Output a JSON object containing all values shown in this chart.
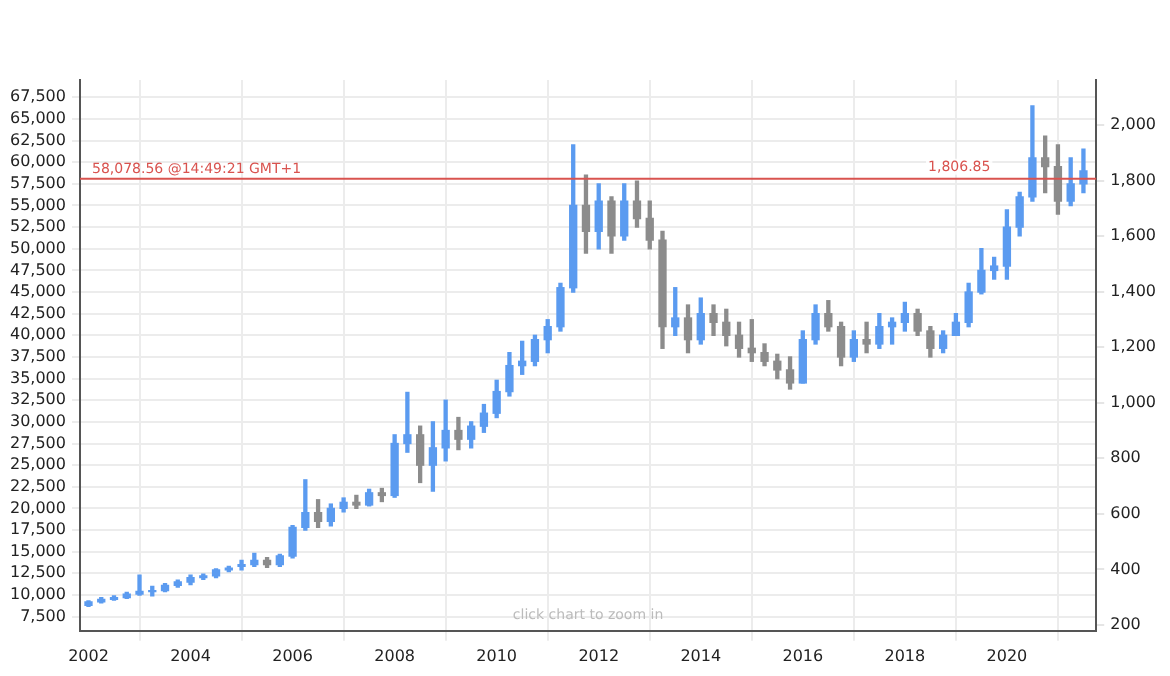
{
  "chart_data": {
    "type": "candlestick",
    "colors": [
      "#5b9bf0",
      "#5b9bf0",
      "#5b9bf0",
      "#5b9bf0",
      "#5b9bf0",
      "#5b9bf0",
      "#5b9bf0",
      "#5b9bf0",
      "#5b9bf0",
      "#5b9bf0",
      "#5b9bf0",
      "#5b9bf0",
      "#5b9bf0",
      "#5b9bf0",
      "#8c8c8c",
      "#5b9bf0",
      "#5b9bf0",
      "#5b9bf0",
      "#8c8c8c",
      "#5b9bf0",
      "#5b9bf0",
      "#8c8c8c",
      "#5b9bf0",
      "#8c8c8c",
      "#5b9bf0",
      "#5b9bf0",
      "#8c8c8c",
      "#5b9bf0",
      "#5b9bf0",
      "#8c8c8c",
      "#5b9bf0",
      "#5b9bf0",
      "#5b9bf0",
      "#5b9bf0",
      "#5b9bf0",
      "#5b9bf0",
      "#5b9bf0",
      "#5b9bf0",
      "#5b9bf0",
      "#8c8c8c",
      "#5b9bf0",
      "#8c8c8c",
      "#5b9bf0",
      "#8c8c8c",
      "#8c8c8c",
      "#8c8c8c",
      "#5b9bf0",
      "#8c8c8c",
      "#5b9bf0",
      "#8c8c8c",
      "#8c8c8c",
      "#8c8c8c",
      "#8c8c8c",
      "#8c8c8c",
      "#8c8c8c",
      "#8c8c8c",
      "#5b9bf0",
      "#5b9bf0",
      "#8c8c8c",
      "#8c8c8c",
      "#5b9bf0",
      "#8c8c8c",
      "#5b9bf0",
      "#5b9bf0",
      "#5b9bf0",
      "#8c8c8c",
      "#8c8c8c",
      "#5b9bf0",
      "#5b9bf0",
      "#5b9bf0",
      "#5b9bf0",
      "#5b9bf0",
      "#5b9bf0",
      "#5b9bf0",
      "#5b9bf0",
      "#8c8c8c",
      "#8c8c8c",
      "#5b9bf0",
      "#5b9bf0"
    ],
    "x": [
      "2002-01",
      "2002-04",
      "2002-07",
      "2002-10",
      "2003-01",
      "2003-04",
      "2003-07",
      "2003-10",
      "2004-01",
      "2004-04",
      "2004-07",
      "2004-10",
      "2005-01",
      "2005-04",
      "2005-07",
      "2005-10",
      "2006-01",
      "2006-04",
      "2006-07",
      "2006-10",
      "2007-01",
      "2007-04",
      "2007-07",
      "2007-10",
      "2008-01",
      "2008-04",
      "2008-07",
      "2008-10",
      "2009-01",
      "2009-04",
      "2009-07",
      "2009-10",
      "2010-01",
      "2010-04",
      "2010-07",
      "2010-10",
      "2011-01",
      "2011-04",
      "2011-07",
      "2011-10",
      "2012-01",
      "2012-04",
      "2012-07",
      "2012-10",
      "2013-01",
      "2013-04",
      "2013-07",
      "2013-10",
      "2014-01",
      "2014-04",
      "2014-07",
      "2014-10",
      "2015-01",
      "2015-04",
      "2015-07",
      "2015-10",
      "2016-01",
      "2016-04",
      "2016-07",
      "2016-10",
      "2017-01",
      "2017-04",
      "2017-07",
      "2017-10",
      "2018-01",
      "2018-04",
      "2018-07",
      "2018-10",
      "2019-01",
      "2019-04",
      "2019-07",
      "2019-10",
      "2020-01",
      "2020-04",
      "2020-07",
      "2020-10",
      "2021-01",
      "2021-04",
      "2021-07"
    ],
    "ohlc": [
      [
        8800,
        9300,
        8700,
        9200
      ],
      [
        9200,
        9700,
        9100,
        9500
      ],
      [
        9500,
        9900,
        9400,
        9700
      ],
      [
        9700,
        10300,
        9600,
        10100
      ],
      [
        10100,
        12300,
        10000,
        10400
      ],
      [
        10400,
        11000,
        9900,
        10500
      ],
      [
        10500,
        11300,
        10400,
        11100
      ],
      [
        11100,
        11700,
        10900,
        11500
      ],
      [
        11500,
        12300,
        11200,
        12000
      ],
      [
        12000,
        12400,
        11800,
        12200
      ],
      [
        12200,
        13000,
        12000,
        12900
      ],
      [
        12900,
        13300,
        12700,
        13100
      ],
      [
        13300,
        14000,
        12900,
        13500
      ],
      [
        13500,
        14800,
        13300,
        14000
      ],
      [
        14000,
        14300,
        13200,
        13500
      ],
      [
        13500,
        14700,
        13300,
        14500
      ],
      [
        14500,
        18000,
        14300,
        17800
      ],
      [
        17800,
        23300,
        17500,
        19500
      ],
      [
        19500,
        21000,
        17800,
        18500
      ],
      [
        18500,
        20500,
        18000,
        20000
      ],
      [
        20000,
        21200,
        19600,
        20700
      ],
      [
        20700,
        21500,
        20000,
        20400
      ],
      [
        20400,
        22200,
        20300,
        21800
      ],
      [
        21800,
        22300,
        20800,
        21500
      ],
      [
        21500,
        28500,
        21300,
        27500
      ],
      [
        27500,
        33400,
        26500,
        28500
      ],
      [
        28500,
        29500,
        23000,
        25000
      ],
      [
        25000,
        30000,
        22000,
        27000
      ],
      [
        27000,
        32500,
        25500,
        29000
      ],
      [
        29000,
        30500,
        26800,
        28000
      ],
      [
        28000,
        30000,
        27000,
        29500
      ],
      [
        29500,
        32000,
        28800,
        31000
      ],
      [
        31000,
        34800,
        30500,
        33500
      ],
      [
        33500,
        38000,
        33000,
        36500
      ],
      [
        36500,
        39300,
        35500,
        37000
      ],
      [
        37000,
        40000,
        36500,
        39500
      ],
      [
        39500,
        41800,
        38000,
        41000
      ],
      [
        41000,
        46000,
        40500,
        45500
      ],
      [
        45500,
        62000,
        45000,
        55000
      ],
      [
        55000,
        58500,
        49500,
        52000
      ],
      [
        52000,
        57500,
        50000,
        55500
      ],
      [
        55500,
        56000,
        49500,
        51500
      ],
      [
        51500,
        57500,
        51000,
        55500
      ],
      [
        55500,
        57800,
        52500,
        53500
      ],
      [
        53500,
        55500,
        50000,
        51000
      ],
      [
        51000,
        52000,
        38500,
        41000
      ],
      [
        41000,
        45500,
        40000,
        42000
      ],
      [
        42000,
        43500,
        38000,
        39500
      ],
      [
        39500,
        44300,
        39000,
        42500
      ],
      [
        42500,
        43500,
        40000,
        41500
      ],
      [
        41500,
        43000,
        38800,
        40000
      ],
      [
        40000,
        41500,
        37500,
        38500
      ],
      [
        38500,
        41800,
        37000,
        38000
      ],
      [
        38000,
        39000,
        36500,
        37000
      ],
      [
        37000,
        37800,
        35000,
        36000
      ],
      [
        36000,
        37500,
        33800,
        34500
      ],
      [
        34500,
        40500,
        34500,
        39500
      ],
      [
        39500,
        43500,
        39000,
        42500
      ],
      [
        42500,
        44000,
        40500,
        41000
      ],
      [
        41000,
        41500,
        36500,
        37500
      ],
      [
        37500,
        40500,
        37000,
        39500
      ],
      [
        39500,
        41500,
        38000,
        39000
      ],
      [
        39000,
        42500,
        38500,
        41000
      ],
      [
        41000,
        42000,
        39000,
        41500
      ],
      [
        41500,
        43800,
        40500,
        42500
      ],
      [
        42500,
        43000,
        40000,
        40500
      ],
      [
        40500,
        41000,
        37500,
        38500
      ],
      [
        38500,
        40500,
        38000,
        40000
      ],
      [
        40000,
        42500,
        40000,
        41500
      ],
      [
        41500,
        46000,
        41000,
        45000
      ],
      [
        45000,
        50000,
        44800,
        47500
      ],
      [
        47500,
        49000,
        46500,
        48000
      ],
      [
        48000,
        54500,
        46500,
        52500
      ],
      [
        52500,
        56500,
        51500,
        56000
      ],
      [
        56000,
        66500,
        55500,
        60500
      ],
      [
        60500,
        63000,
        56500,
        59500
      ],
      [
        59500,
        62000,
        54000,
        55500
      ],
      [
        55500,
        60500,
        55000,
        57500
      ],
      [
        57500,
        61500,
        56500,
        59000
      ]
    ],
    "xlim": [
      "2001-11",
      "2021-10"
    ],
    "xticks": [
      {
        "value": "2002",
        "label": "2002"
      },
      {
        "value": "2004",
        "label": "2004"
      },
      {
        "value": "2006",
        "label": "2006"
      },
      {
        "value": "2008",
        "label": "2008"
      },
      {
        "value": "2010",
        "label": "2010"
      },
      {
        "value": "2012",
        "label": "2012"
      },
      {
        "value": "2014",
        "label": "2014"
      },
      {
        "value": "2016",
        "label": "2016"
      },
      {
        "value": "2018",
        "label": "2018"
      },
      {
        "value": "2020",
        "label": "2020"
      }
    ],
    "ylim": [
      5860,
      69500
    ],
    "yticks": [
      {
        "value": 7500,
        "label": "7,500"
      },
      {
        "value": 10000,
        "label": "10,000"
      },
      {
        "value": 12500,
        "label": "12,500"
      },
      {
        "value": 15000,
        "label": "15,000"
      },
      {
        "value": 17500,
        "label": "17,500"
      },
      {
        "value": 20000,
        "label": "20,000"
      },
      {
        "value": 22500,
        "label": "22,500"
      },
      {
        "value": 25000,
        "label": "25,000"
      },
      {
        "value": 27500,
        "label": "27,500"
      },
      {
        "value": 30000,
        "label": "30,000"
      },
      {
        "value": 32500,
        "label": "32,500"
      },
      {
        "value": 35000,
        "label": "35,000"
      },
      {
        "value": 37500,
        "label": "37,500"
      },
      {
        "value": 40000,
        "label": "40,000"
      },
      {
        "value": 42500,
        "label": "42,500"
      },
      {
        "value": 45000,
        "label": "45,000"
      },
      {
        "value": 47500,
        "label": "47,500"
      },
      {
        "value": 50000,
        "label": "50,000"
      },
      {
        "value": 52500,
        "label": "52,500"
      },
      {
        "value": 55000,
        "label": "55,000"
      },
      {
        "value": 57500,
        "label": "57,500"
      },
      {
        "value": 60000,
        "label": "60,000"
      },
      {
        "value": 62500,
        "label": "62,500"
      },
      {
        "value": 65000,
        "label": "65,000"
      },
      {
        "value": 67500,
        "label": "67,500"
      }
    ],
    "y2lim": [
      179,
      2162
    ],
    "y2ticks": [
      200,
      400,
      600,
      800,
      {
        "value": 1000,
        "label": "1,000"
      },
      {
        "value": 1200,
        "label": "1,200"
      },
      {
        "value": 1400,
        "label": "1,400"
      },
      {
        "value": 1600,
        "label": "1,600"
      },
      {
        "value": 1800,
        "label": "1,800"
      },
      {
        "value": 2000,
        "label": "2,000"
      }
    ],
    "ref_lines": [
      {
        "axis": "y",
        "value": 58078.56,
        "label": "58,078.56 @14:49:21 GMT+1",
        "color": "#d9534f"
      }
    ],
    "annotations": [
      "click chart to zoom in",
      {
        "text": "1,806.85",
        "x": "2019-11",
        "y": 58078.56
      }
    ],
    "grid": true,
    "legend": false
  }
}
